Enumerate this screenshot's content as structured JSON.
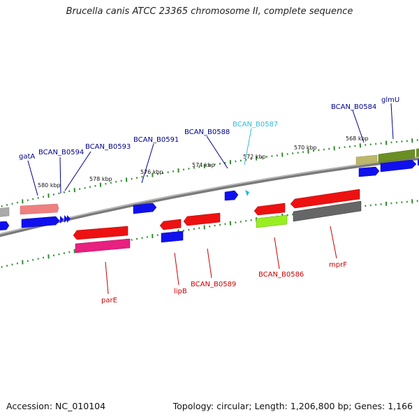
{
  "title": "Brucella canis ATCC 23365 chromosome II, complete sequence",
  "footer": {
    "accession": "Accession: NC_010104",
    "summary": "Topology: circular; Length: 1,206,800 bp; Genes: 1,166"
  },
  "colors": {
    "backbone": "#8a8a8a",
    "tick": "#2e8b2e",
    "label_top": "#00008b",
    "label_bottom": "#cc0000",
    "label_highlight": "#33bbdd",
    "blue": "#1010ee",
    "red": "#ee1111",
    "pink": "#e8207f",
    "salmon": "#ee8080",
    "grey": "#aaaaaa",
    "darkgrey": "#666666",
    "olive": "#6b8e23",
    "khaki": "#bdb76b",
    "lime": "#99ee22",
    "cyan": "#22bbdd"
  },
  "kbp_labels": [
    "580 kbp",
    "578 kbp",
    "576 kbp",
    "574 kbp",
    "572 kbp",
    "570 kbp",
    "568 kbp"
  ],
  "gene_labels_top": [
    "gatA",
    "BCAN_B0594",
    "BCAN_B0593",
    "BCAN_B0591",
    "BCAN_B0588",
    "BCAN_B0587",
    "BCAN_B0584",
    "glmU"
  ],
  "gene_labels_bottom": [
    "parE",
    "lipB",
    "BCAN_B0589",
    "BCAN_B0586",
    "mprF"
  ]
}
